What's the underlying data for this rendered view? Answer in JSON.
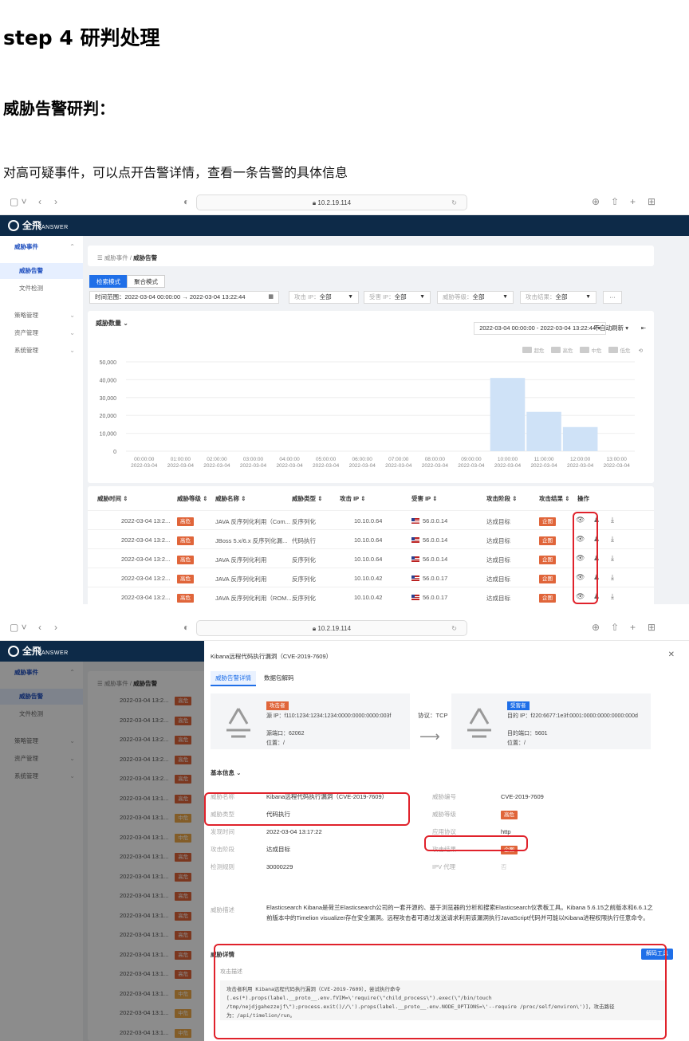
{
  "doc": {
    "heading": "step 4  研判处理",
    "subheading": "威胁告警研判：",
    "paragraph": "对高可疑事件，可以点开告警详情，查看一条告警的具体信息"
  },
  "browser": {
    "url": "10.2.19.114"
  },
  "app": {
    "logo_text": "全飛",
    "logo_sub": "ANSWER",
    "sidebar": [
      {
        "label": "威胁事件",
        "type": "group"
      },
      {
        "label": "威胁告警",
        "type": "active"
      },
      {
        "label": "文件检测",
        "type": "sub"
      },
      {
        "label": "策略管理",
        "type": "item"
      },
      {
        "label": "资产管理",
        "type": "item"
      },
      {
        "label": "系统管理",
        "type": "item"
      }
    ],
    "breadcrumb": {
      "parent": "威胁事件",
      "sep": "/",
      "current": "威胁告警"
    }
  },
  "list_view": {
    "tabs": [
      "检索模式",
      "聚合模式"
    ],
    "filters": {
      "time_label": "时间范围：",
      "time_start": "2022-03-04 00:00:00",
      "time_arrow": "→",
      "time_end": "2022-03-04 13:22:44",
      "attack_ip": "攻击 IP：",
      "attack_ip_val": "全部",
      "victim_ip": "受害 IP：",
      "victim_ip_val": "全部",
      "level": "威胁等级：",
      "level_val": "全部",
      "result": "攻击结果：",
      "result_val": "全部",
      "more": "···"
    },
    "chart_card": {
      "title": "威胁数量",
      "range": "2022-03-04 00:00:00 - 2022-03-04 13:22:44",
      "auto_refresh": "不自动刷新",
      "legend": [
        "超危",
        "高危",
        "中危",
        "低危"
      ]
    },
    "table": {
      "headers": [
        "威胁时间",
        "威胁等级",
        "威胁名称",
        "威胁类型",
        "攻击 IP",
        "受害 IP",
        "攻击阶段",
        "攻击结果",
        "操作"
      ],
      "rows": [
        {
          "time": "2022-03-04 13:2...",
          "level": "高危",
          "name": "JAVA 反序列化利用（Com...",
          "type": "反序列化",
          "attack_ip": "10.10.0.64",
          "victim_ip": "56.0.0.14",
          "stage": "达成目标",
          "result": "企图"
        },
        {
          "time": "2022-03-04 13:2...",
          "level": "高危",
          "name": "JBoss 5.x/6.x 反序列化漏...",
          "type": "代码执行",
          "attack_ip": "10.10.0.64",
          "victim_ip": "56.0.0.14",
          "stage": "达成目标",
          "result": "企图"
        },
        {
          "time": "2022-03-04 13:2...",
          "level": "高危",
          "name": "JAVA 反序列化利用",
          "type": "反序列化",
          "attack_ip": "10.10.0.64",
          "victim_ip": "56.0.0.14",
          "stage": "达成目标",
          "result": "企图"
        },
        {
          "time": "2022-03-04 13:2...",
          "level": "高危",
          "name": "JAVA 反序列化利用",
          "type": "反序列化",
          "attack_ip": "10.10.0.42",
          "victim_ip": "56.0.0.17",
          "stage": "达成目标",
          "result": "企图"
        },
        {
          "time": "2022-03-04 13:2...",
          "level": "高危",
          "name": "JAVA 反序列化利用（ROM...",
          "type": "反序列化",
          "attack_ip": "10.10.0.42",
          "victim_ip": "56.0.0.17",
          "stage": "达成目标",
          "result": "企图"
        }
      ]
    }
  },
  "chart_data": {
    "type": "bar",
    "title": "威胁数量",
    "categories": [
      "00:00:00",
      "01:00:00",
      "02:00:00",
      "03:00:00",
      "04:00:00",
      "05:00:00",
      "06:00:00",
      "07:00:00",
      "08:00:00",
      "09:00:00",
      "10:00:00",
      "11:00:00",
      "12:00:00",
      "13:00:00"
    ],
    "category_date": "2022-03-04",
    "values": [
      0,
      0,
      0,
      0,
      0,
      0,
      0,
      0,
      0,
      0,
      41000,
      22000,
      13500,
      0
    ],
    "yticks": [
      "0",
      "10,000",
      "20,000",
      "30,000",
      "40,000",
      "50,000"
    ],
    "ylim": [
      0,
      50000
    ],
    "color": "#cfe2f7"
  },
  "detail_view": {
    "background_rows": [
      {
        "time": "2022-03-04 13:2...",
        "level": "高危"
      },
      {
        "time": "2022-03-04 13:2...",
        "level": "高危"
      },
      {
        "time": "2022-03-04 13:2...",
        "level": "高危"
      },
      {
        "time": "2022-03-04 13:2...",
        "level": "高危"
      },
      {
        "time": "2022-03-04 13:2...",
        "level": "高危"
      },
      {
        "time": "2022-03-04 13:1...",
        "level": "高危"
      },
      {
        "time": "2022-03-04 13:1...",
        "level": "中危"
      },
      {
        "time": "2022-03-04 13:1...",
        "level": "中危"
      },
      {
        "time": "2022-03-04 13:1...",
        "level": "高危"
      },
      {
        "time": "2022-03-04 13:1...",
        "level": "高危"
      },
      {
        "time": "2022-03-04 13:1...",
        "level": "高危"
      },
      {
        "time": "2022-03-04 13:1...",
        "level": "高危"
      },
      {
        "time": "2022-03-04 13:1...",
        "level": "高危"
      },
      {
        "time": "2022-03-04 13:1...",
        "level": "高危"
      },
      {
        "time": "2022-03-04 13:1...",
        "level": "高危"
      },
      {
        "time": "2022-03-04 13:1...",
        "level": "中危"
      },
      {
        "time": "2022-03-04 13:1...",
        "level": "中危"
      },
      {
        "time": "2022-03-04 13:1...",
        "level": "中危"
      }
    ],
    "drawer": {
      "title": "Kibana远程代码执行漏洞（CVE-2019-7609）",
      "tabs": [
        "威胁告警详情",
        "数据包解码"
      ],
      "attacker": {
        "tag": "攻击者",
        "ip": "源 IP：f110:1234:1234:1234:0000:0000:0000:003f",
        "port": "源端口：62062",
        "loc": "位置：/"
      },
      "protocol": "协议：TCP",
      "victim": {
        "tag": "受害者",
        "ip": "目的 IP：f220:6677:1e3f:0001:0000:0000:0000:000d",
        "port": "目的端口：5601",
        "loc": "位置：/"
      },
      "basic_title": "基本信息",
      "basic": {
        "name_k": "威胁名称",
        "name_v": "Kibana远程代码执行漏洞（CVE-2019-7609）",
        "type_k": "威胁类型",
        "type_v": "代码执行",
        "time_k": "发现时间",
        "time_v": "2022-03-04 13:17:22",
        "stage_k": "攻击阶段",
        "stage_v": "达成目标",
        "rule_k": "检测规则",
        "rule_v": "30000229",
        "desc_k": "威胁描述",
        "desc_v": "Elasticsearch Kibana是荷兰Elasticsearch公司的一套开源的、基于浏览器的分析和搜索Elasticsearch仪表板工具。Kibana 5.6.15之前版本和6.6.1之前版本中的Timelion visualizer存在安全漏洞。远程攻击者可通过发送请求利用该漏洞执行JavaScript代码并可能以Kibana进程权限执行任意命令。",
        "id_k": "威胁编号",
        "id_v": "CVE-2019-7609",
        "level_k": "威胁等级",
        "level_v": "高危",
        "proto_k": "应用协议",
        "proto_v": "http",
        "result_k": "攻击结果",
        "result_v": "企图",
        "ipv_k": "IPV 代理",
        "ipv_v": "否"
      },
      "detail_title": "威胁详情",
      "decode_button": "解码工具",
      "attack_desc_title": "攻击描述",
      "attack_desc": "攻击者利用 Kibana远程代码执行漏洞（CVE-2019-7609），尝试执行命令 [.es(*).props(label.__proto__.env.fVIM=\\'require(\\\"child_process\\\").exec(\\\"/bin/touch /tmp/nejdjgahezzejf\\\");process.exit()//\\').props(label.__proto__.env.NODE_OPTIONS=\\'--require /proc/self/environ\\')]，攻击路径为：/api/timelion/run。"
    }
  }
}
